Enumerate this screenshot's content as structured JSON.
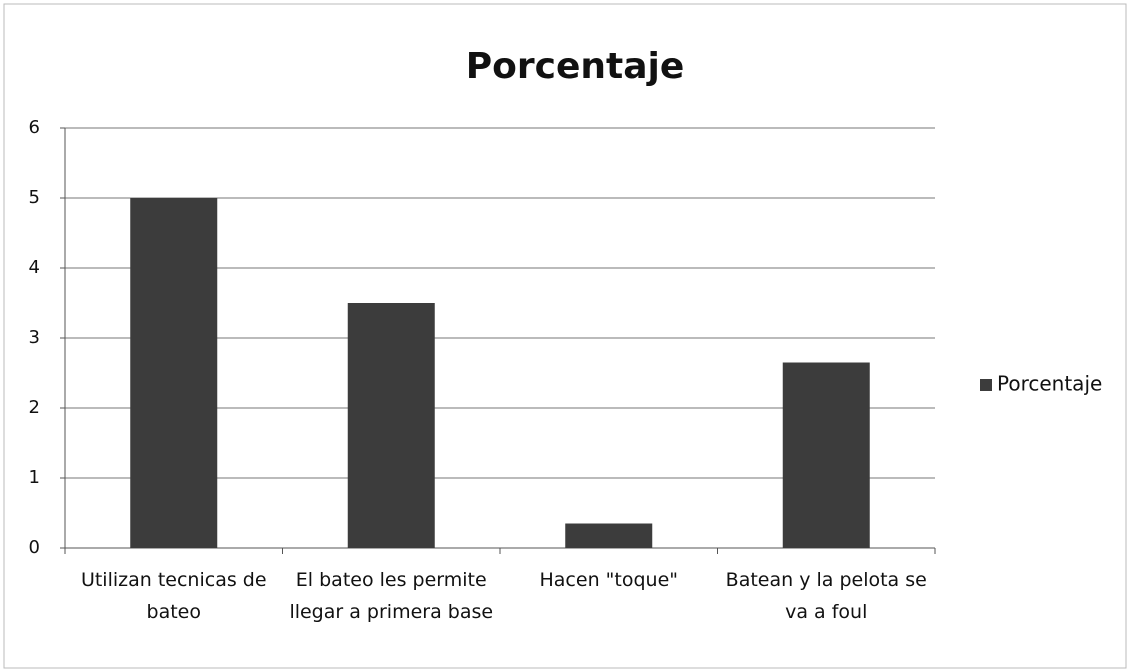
{
  "chart_data": {
    "type": "bar",
    "title": "Porcentaje",
    "categories": [
      "Utilizan tecnicas de bateo",
      "El bateo les permite llegar a primera base",
      "Hacen \"toque\"",
      "Batean y la pelota se va a foul"
    ],
    "series": [
      {
        "name": "Porcentaje",
        "color": "#3c3c3c",
        "values": [
          5,
          3.5,
          0.35,
          2.65
        ]
      }
    ],
    "ylim": [
      0,
      6
    ],
    "yticks": [
      0,
      1,
      2,
      3,
      4,
      5,
      6
    ],
    "grid": true,
    "legend": "right"
  }
}
